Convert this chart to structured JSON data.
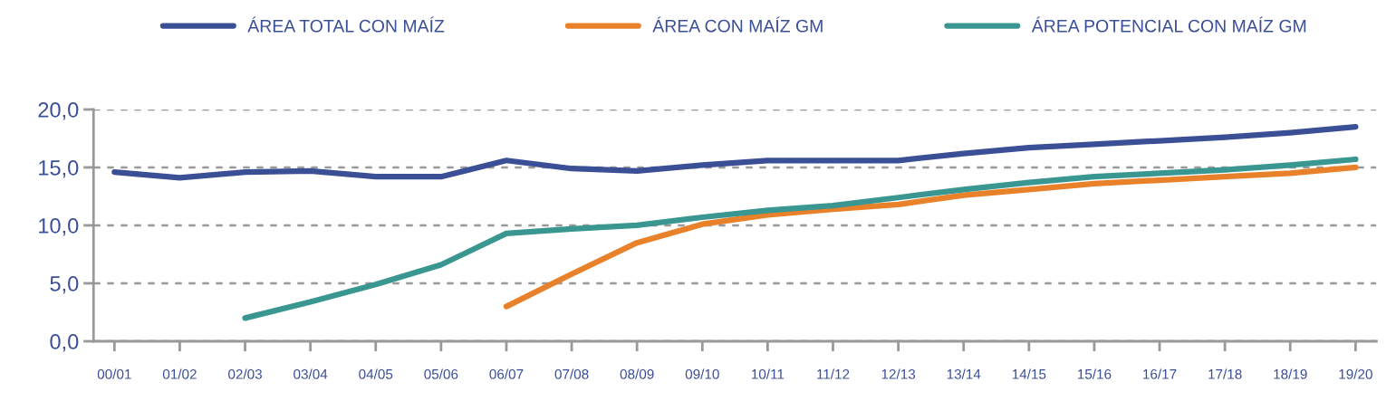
{
  "chart_data": {
    "type": "line",
    "categories": [
      "00/01",
      "01/02",
      "02/03",
      "03/04",
      "04/05",
      "05/06",
      "06/07",
      "07/08",
      "08/09",
      "09/10",
      "10/11",
      "11/12",
      "12/13",
      "13/14",
      "14/15",
      "15/16",
      "16/17",
      "17/18",
      "18/19",
      "19/20"
    ],
    "series": [
      {
        "name": "ÁREA TOTAL CON MAÍZ",
        "color": "#3b4f96",
        "values": [
          14.6,
          14.1,
          14.6,
          14.7,
          14.2,
          14.2,
          15.6,
          14.9,
          14.7,
          15.2,
          15.6,
          15.6,
          15.6,
          16.2,
          16.7,
          17.0,
          17.3,
          17.6,
          18.0,
          18.5
        ]
      },
      {
        "name": "ÁREA CON MAÍZ GM",
        "color": "#e8812a",
        "values": [
          null,
          null,
          null,
          null,
          null,
          null,
          3.0,
          5.8,
          8.5,
          10.1,
          10.9,
          11.4,
          11.8,
          12.6,
          13.1,
          13.6,
          13.9,
          14.2,
          14.5,
          15.0
        ]
      },
      {
        "name": "ÁREA POTENCIAL CON MAÍZ GM",
        "color": "#3a9690",
        "values": [
          null,
          null,
          2.0,
          3.4,
          4.9,
          6.6,
          9.3,
          9.7,
          10.0,
          10.7,
          11.3,
          11.7,
          12.4,
          13.1,
          13.7,
          14.2,
          14.5,
          14.8,
          15.2,
          15.7
        ]
      }
    ],
    "ylim": [
      0,
      20
    ],
    "yticks": [
      {
        "value": 0,
        "label": "0,0"
      },
      {
        "value": 5,
        "label": "5,0"
      },
      {
        "value": 10,
        "label": "10,0"
      },
      {
        "value": 15,
        "label": "15,0"
      },
      {
        "value": 20,
        "label": "20,0"
      }
    ],
    "grid": "y",
    "legend": "top",
    "marker": "none",
    "line_style": "solid"
  }
}
